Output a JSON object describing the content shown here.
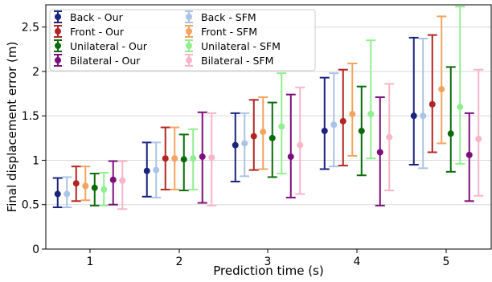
{
  "chart_data": {
    "type": "scatter",
    "subtype": "error-bar",
    "title": "",
    "xlabel": "Prediction time (s)",
    "ylabel": "Final displacement error (m)",
    "categories": [
      "1",
      "2",
      "3",
      "4",
      "5"
    ],
    "ylim": [
      0,
      2.75
    ],
    "yticks": [
      "0",
      "0.5",
      "1",
      "1.5",
      "2",
      "2.5"
    ],
    "grid": "horizontal",
    "legend_position": "top-left",
    "series": [
      {
        "name": "Back - Our",
        "color": "#1a237e",
        "values": [
          0.62,
          0.88,
          1.17,
          1.33,
          1.5
        ],
        "lower": [
          0.47,
          0.59,
          0.76,
          0.9,
          0.95
        ],
        "upper": [
          0.8,
          1.2,
          1.53,
          1.93,
          2.38
        ]
      },
      {
        "name": "Back - SFM",
        "color": "#aac4e6",
        "values": [
          0.62,
          0.89,
          1.19,
          1.4,
          1.5
        ],
        "lower": [
          0.47,
          0.58,
          0.82,
          0.93,
          0.91
        ],
        "upper": [
          0.81,
          1.2,
          1.53,
          1.98,
          2.37
        ]
      },
      {
        "name": "Front - Our",
        "color": "#b32424",
        "values": [
          0.74,
          1.02,
          1.27,
          1.44,
          1.63
        ],
        "lower": [
          0.54,
          0.67,
          0.89,
          0.94,
          1.09
        ],
        "upper": [
          0.93,
          1.37,
          1.68,
          2.02,
          2.41
        ]
      },
      {
        "name": "Front - SFM",
        "color": "#f4a460",
        "values": [
          0.71,
          1.02,
          1.32,
          1.52,
          1.8
        ],
        "lower": [
          0.55,
          0.67,
          0.9,
          1.05,
          1.19
        ],
        "upper": [
          0.93,
          1.37,
          1.71,
          2.09,
          2.62
        ]
      },
      {
        "name": "Unilateral - Our",
        "color": "#0b6b0b",
        "values": [
          0.69,
          1.01,
          1.25,
          1.33,
          1.3
        ],
        "lower": [
          0.49,
          0.66,
          0.81,
          0.83,
          0.87
        ],
        "upper": [
          0.85,
          1.29,
          1.65,
          1.83,
          2.05
        ]
      },
      {
        "name": "Unilateral - SFM",
        "color": "#90ee90",
        "values": [
          0.67,
          1.02,
          1.38,
          1.52,
          1.6
        ],
        "lower": [
          0.49,
          0.67,
          0.85,
          1.02,
          0.96
        ],
        "upper": [
          0.86,
          1.35,
          1.98,
          2.35,
          2.73
        ]
      },
      {
        "name": "Bilateral - Our",
        "color": "#7b0f7b",
        "values": [
          0.78,
          1.04,
          1.04,
          1.09,
          1.06
        ],
        "lower": [
          0.5,
          0.52,
          0.58,
          0.49,
          0.54
        ],
        "upper": [
          0.99,
          1.54,
          1.74,
          1.71,
          1.53
        ]
      },
      {
        "name": "Bilateral - SFM",
        "color": "#f8b5c8",
        "values": [
          0.77,
          1.03,
          1.17,
          1.26,
          1.24
        ],
        "lower": [
          0.45,
          0.49,
          0.62,
          0.66,
          0.6
        ],
        "upper": [
          0.99,
          1.53,
          1.82,
          1.86,
          2.02
        ]
      }
    ],
    "legend_columns": [
      [
        "Back - Our",
        "Front - Our",
        "Unilateral - Our",
        "Bilateral - Our"
      ],
      [
        "Back - SFM",
        "Front - SFM",
        "Unilateral - SFM",
        "Bilateral - SFM"
      ]
    ]
  }
}
